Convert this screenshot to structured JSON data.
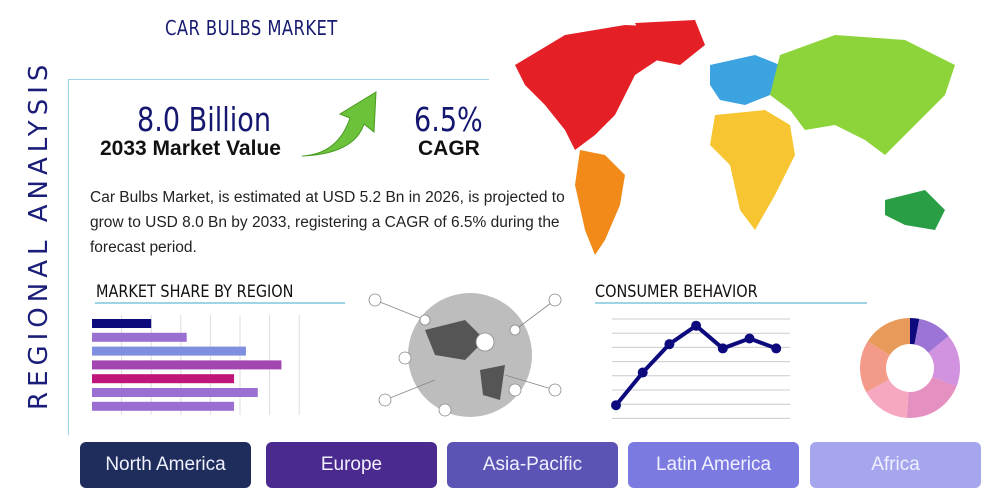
{
  "title": "CAR BULBS MARKET",
  "side_label": "REGIONAL ANALYSIS",
  "market_value": {
    "value": "8.0 Billion",
    "label": "2033 Market Value"
  },
  "cagr": {
    "value": "6.5%",
    "label": "CAGR"
  },
  "description": "Car Bulbs Market, is estimated at USD 5.2 Bn in 2026, is projected to grow to USD 8.0 Bn by 2033, registering a CAGR of 6.5% during the forecast period.",
  "sections": {
    "market_share": "MARKET SHARE BY REGION",
    "consumer": "CONSUMER BEHAVIOR"
  },
  "regions": [
    {
      "label": "North America",
      "color": "#1e2d5c"
    },
    {
      "label": "Europe",
      "color": "#4b2a8f"
    },
    {
      "label": "Asia-Pacific",
      "color": "#5b54b5"
    },
    {
      "label": "Latin America",
      "color": "#7b7ae0"
    },
    {
      "label": "Africa",
      "color": "#a5a6ee"
    }
  ],
  "chart_data": [
    {
      "type": "bar",
      "orientation": "horizontal",
      "values": [
        2.0,
        3.2,
        5.2,
        6.4,
        4.8,
        5.6,
        4.8
      ],
      "colors": [
        "#0d0a7d",
        "#9b6fd1",
        "#7f8fe0",
        "#a347b0",
        "#c0157a",
        "#9b6fd1",
        "#9b6fd1"
      ],
      "xlim": [
        0,
        7
      ],
      "grid": true
    },
    {
      "type": "line",
      "values": [
        0.9,
        3.2,
        5.2,
        6.5,
        4.9,
        5.6,
        4.9
      ],
      "ylim": [
        0,
        7
      ],
      "color": "#0d0a7d",
      "grid": true
    },
    {
      "type": "pie",
      "donut": true,
      "values": [
        3,
        11,
        17,
        20,
        16,
        17,
        16
      ],
      "colors": [
        "#0d0a7d",
        "#9b74d6",
        "#d192e0",
        "#e490c0",
        "#f6a8c0",
        "#f39a88",
        "#e89a5a"
      ]
    }
  ],
  "icons": {
    "arrow": "growth-arrow-icon",
    "map": "world-map",
    "globe": "network-globe"
  }
}
